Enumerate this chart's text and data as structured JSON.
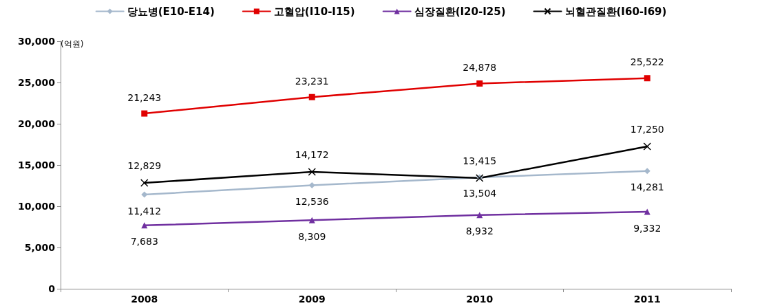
{
  "chart_data": {
    "type": "line",
    "ylabel": "(억원)",
    "categories": [
      "2008",
      "2009",
      "2010",
      "2011"
    ],
    "series": [
      {
        "name": "당뇨병(E10-E14)",
        "color": "#a5b8cc",
        "marker": "diamond",
        "values": [
          11412,
          12536,
          13504,
          14281
        ],
        "value_labels": [
          "11,412",
          "12,536",
          "13,504",
          "14,281"
        ]
      },
      {
        "name": "고혈압(I10-I15)",
        "color": "#e00000",
        "marker": "square",
        "values": [
          21243,
          23231,
          24878,
          25522
        ],
        "value_labels": [
          "21,243",
          "23,231",
          "24,878",
          "25,522"
        ]
      },
      {
        "name": "심장질환(I20-I25)",
        "color": "#7030a0",
        "marker": "triangle",
        "values": [
          7683,
          8309,
          8932,
          9332
        ],
        "value_labels": [
          "7,683",
          "8,309",
          "8,932",
          "9,332"
        ]
      },
      {
        "name": "뇌혈관질환(I60-I69)",
        "color": "#000000",
        "marker": "cross",
        "values": [
          12829,
          14172,
          13415,
          17250
        ],
        "value_labels": [
          "12,829",
          "14,172",
          "13,415",
          "17,250"
        ]
      }
    ],
    "ylim": [
      0,
      30000
    ],
    "yticks": [
      {
        "value": 0,
        "label": "0"
      },
      {
        "value": 5000,
        "label": "5,000"
      },
      {
        "value": 10000,
        "label": "10,000"
      },
      {
        "value": 15000,
        "label": "15,000"
      },
      {
        "value": 20000,
        "label": "20,000"
      },
      {
        "value": 25000,
        "label": "25,000"
      },
      {
        "value": 30000,
        "label": "30,000"
      }
    ],
    "grid": false,
    "legend": "top",
    "line_style": "solid"
  }
}
